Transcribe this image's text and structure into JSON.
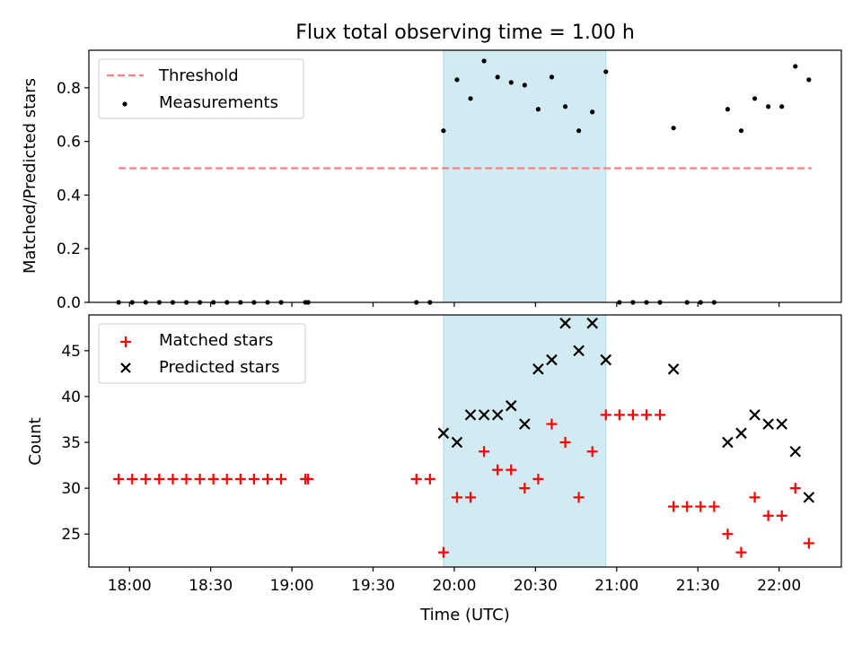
{
  "chart_data": [
    {
      "type": "scatter",
      "title": "Flux total observing time = 1.00 h",
      "ylabel": "Matched/Predicted stars",
      "xlabel": "",
      "ylim": [
        0,
        0.94
      ],
      "yticks": [
        "0.0",
        "0.2",
        "0.4",
        "0.6",
        "0.8"
      ],
      "ytick_values": [
        0,
        0.2,
        0.4,
        0.6,
        0.8
      ],
      "legend_position": "top-left",
      "shaded_interval": [
        "19:56",
        "20:56"
      ],
      "threshold": {
        "name": "Threshold",
        "value": 0.5,
        "x_range": [
          "17:56",
          "22:12"
        ],
        "color": "#ff7f7f"
      },
      "series": [
        {
          "name": "Measurements",
          "color": "#000000",
          "points": [
            [
              "17:56",
              0.0
            ],
            [
              "18:01",
              0.0
            ],
            [
              "18:06",
              0.0
            ],
            [
              "18:11",
              0.0
            ],
            [
              "18:16",
              0.0
            ],
            [
              "18:21",
              0.0
            ],
            [
              "18:26",
              0.0
            ],
            [
              "18:31",
              0.0
            ],
            [
              "18:36",
              0.0
            ],
            [
              "18:41",
              0.0
            ],
            [
              "18:46",
              0.0
            ],
            [
              "18:51",
              0.0
            ],
            [
              "18:56",
              0.0
            ],
            [
              "19:05",
              0.0
            ],
            [
              "19:06",
              0.0
            ],
            [
              "19:46",
              0.0
            ],
            [
              "19:51",
              0.0
            ],
            [
              "19:56",
              0.64
            ],
            [
              "20:01",
              0.83
            ],
            [
              "20:06",
              0.76
            ],
            [
              "20:11",
              0.9
            ],
            [
              "20:16",
              0.84
            ],
            [
              "20:21",
              0.82
            ],
            [
              "20:26",
              0.81
            ],
            [
              "20:31",
              0.72
            ],
            [
              "20:36",
              0.84
            ],
            [
              "20:41",
              0.73
            ],
            [
              "20:46",
              0.64
            ],
            [
              "20:51",
              0.71
            ],
            [
              "20:56",
              0.86
            ],
            [
              "21:01",
              0.0
            ],
            [
              "21:06",
              0.0
            ],
            [
              "21:11",
              0.0
            ],
            [
              "21:16",
              0.0
            ],
            [
              "21:21",
              0.65
            ],
            [
              "21:26",
              0.0
            ],
            [
              "21:31",
              0.0
            ],
            [
              "21:36",
              0.0
            ],
            [
              "21:41",
              0.72
            ],
            [
              "21:46",
              0.64
            ],
            [
              "21:51",
              0.76
            ],
            [
              "21:56",
              0.73
            ],
            [
              "22:01",
              0.73
            ],
            [
              "22:06",
              0.88
            ],
            [
              "22:11",
              0.83
            ]
          ]
        }
      ]
    },
    {
      "type": "scatter",
      "title": "",
      "ylabel": "Count",
      "xlabel": "Time (UTC)",
      "ylim": [
        21.4,
        48.9
      ],
      "yticks": [
        "25",
        "30",
        "35",
        "40",
        "45"
      ],
      "ytick_values": [
        25,
        30,
        35,
        40,
        45
      ],
      "xlim": [
        "17:45",
        "22:23"
      ],
      "xticks": [
        "18:00",
        "18:30",
        "19:00",
        "19:30",
        "20:00",
        "20:30",
        "21:00",
        "21:30",
        "22:00"
      ],
      "legend_position": "top-left",
      "shaded_interval": [
        "19:56",
        "20:56"
      ],
      "series": [
        {
          "name": "Matched stars",
          "marker": "plus",
          "color": "#ff0000",
          "points": [
            [
              "17:56",
              31
            ],
            [
              "18:01",
              31
            ],
            [
              "18:06",
              31
            ],
            [
              "18:11",
              31
            ],
            [
              "18:16",
              31
            ],
            [
              "18:21",
              31
            ],
            [
              "18:26",
              31
            ],
            [
              "18:31",
              31
            ],
            [
              "18:36",
              31
            ],
            [
              "18:41",
              31
            ],
            [
              "18:46",
              31
            ],
            [
              "18:51",
              31
            ],
            [
              "18:56",
              31
            ],
            [
              "19:05",
              31
            ],
            [
              "19:06",
              31
            ],
            [
              "19:46",
              31
            ],
            [
              "19:51",
              31
            ],
            [
              "19:56",
              23
            ],
            [
              "20:01",
              29
            ],
            [
              "20:06",
              29
            ],
            [
              "20:11",
              34
            ],
            [
              "20:16",
              32
            ],
            [
              "20:21",
              32
            ],
            [
              "20:26",
              30
            ],
            [
              "20:31",
              31
            ],
            [
              "20:36",
              37
            ],
            [
              "20:41",
              35
            ],
            [
              "20:46",
              29
            ],
            [
              "20:51",
              34
            ],
            [
              "20:56",
              38
            ],
            [
              "21:01",
              38
            ],
            [
              "21:06",
              38
            ],
            [
              "21:11",
              38
            ],
            [
              "21:16",
              38
            ],
            [
              "21:21",
              28
            ],
            [
              "21:26",
              28
            ],
            [
              "21:31",
              28
            ],
            [
              "21:36",
              28
            ],
            [
              "21:41",
              25
            ],
            [
              "21:46",
              23
            ],
            [
              "21:51",
              29
            ],
            [
              "21:56",
              27
            ],
            [
              "22:01",
              27
            ],
            [
              "22:06",
              30
            ],
            [
              "22:11",
              24
            ]
          ]
        },
        {
          "name": "Predicted stars",
          "marker": "x",
          "color": "#000000",
          "points": [
            [
              "19:56",
              36
            ],
            [
              "20:01",
              35
            ],
            [
              "20:06",
              38
            ],
            [
              "20:11",
              38
            ],
            [
              "20:16",
              38
            ],
            [
              "20:21",
              39
            ],
            [
              "20:26",
              37
            ],
            [
              "20:31",
              43
            ],
            [
              "20:36",
              44
            ],
            [
              "20:41",
              48
            ],
            [
              "20:46",
              45
            ],
            [
              "20:51",
              48
            ],
            [
              "20:56",
              44
            ],
            [
              "21:21",
              43
            ],
            [
              "21:41",
              35
            ],
            [
              "21:46",
              36
            ],
            [
              "21:51",
              38
            ],
            [
              "21:56",
              37
            ],
            [
              "22:01",
              37
            ],
            [
              "22:06",
              34
            ],
            [
              "22:11",
              29
            ]
          ]
        }
      ]
    }
  ],
  "colors": {
    "shade": "#add8e6",
    "threshold": "#ff7f7f",
    "matched": "#ff0000",
    "predicted": "#000000"
  }
}
